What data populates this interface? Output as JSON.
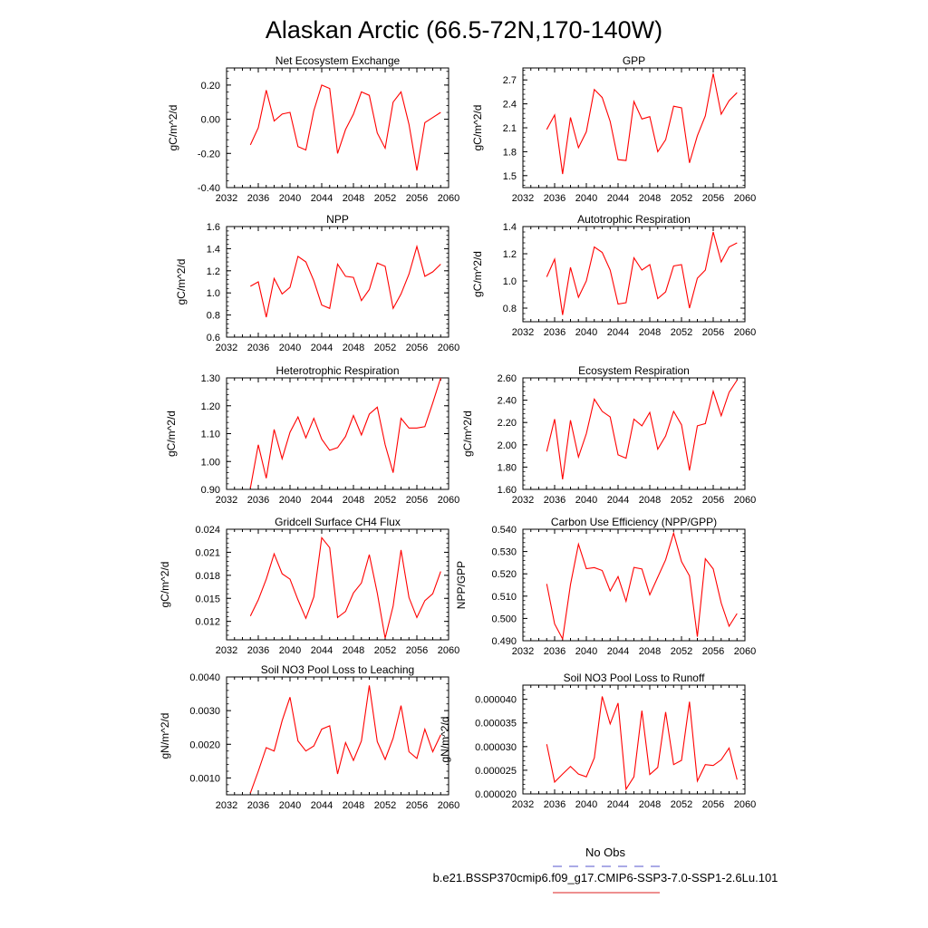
{
  "title": "Alaskan Arctic (66.5-72N,170-140W)",
  "legend": {
    "items": [
      {
        "label": "No Obs",
        "color": "#5555cc",
        "dash": true
      },
      {
        "label": "b.e21.BSSP370cmip6.f09_g17.CMIP6-SSP3-7.0-SSP1-2.6Lu.101",
        "color": "#dd2222",
        "dash": false
      }
    ]
  },
  "colors": {
    "series": "#ff0000",
    "axis": "#000000"
  },
  "chart_data": [
    {
      "type": "line",
      "title": "Net Ecosystem Exchange",
      "ylabel": "gC/m^2/d",
      "xlim": [
        2032,
        2060
      ],
      "xticks": [
        2032,
        2036,
        2040,
        2044,
        2048,
        2052,
        2056,
        2060
      ],
      "ylim": [
        -0.4,
        0.3
      ],
      "yticks": [
        -0.4,
        -0.2,
        0.0,
        0.2
      ],
      "ytick_labels": [
        "-0.40",
        "-0.20",
        "0.00",
        "0.20"
      ],
      "x": [
        2035,
        2036,
        2037,
        2038,
        2039,
        2040,
        2041,
        2042,
        2043,
        2044,
        2045,
        2046,
        2047,
        2048,
        2049,
        2050,
        2051,
        2052,
        2053,
        2054,
        2055,
        2056,
        2057,
        2058,
        2059
      ],
      "y": [
        -0.15,
        -0.05,
        0.17,
        -0.01,
        0.03,
        0.04,
        -0.16,
        -0.18,
        0.05,
        0.2,
        0.18,
        -0.2,
        -0.06,
        0.03,
        0.16,
        0.14,
        -0.08,
        -0.17,
        0.1,
        0.16,
        -0.03,
        -0.3,
        -0.02,
        0.01,
        0.04
      ]
    },
    {
      "type": "line",
      "title": "GPP",
      "ylabel": "gC/m^2/d",
      "xlim": [
        2032,
        2060
      ],
      "xticks": [
        2032,
        2036,
        2040,
        2044,
        2048,
        2052,
        2056,
        2060
      ],
      "ylim": [
        1.35,
        2.85
      ],
      "yticks": [
        1.5,
        1.8,
        2.1,
        2.4,
        2.7
      ],
      "ytick_labels": [
        "1.5",
        "1.8",
        "2.1",
        "2.4",
        "2.7"
      ],
      "x": [
        2035,
        2036,
        2037,
        2038,
        2039,
        2040,
        2041,
        2042,
        2043,
        2044,
        2045,
        2046,
        2047,
        2048,
        2049,
        2050,
        2051,
        2052,
        2053,
        2054,
        2055,
        2056,
        2057,
        2058,
        2059
      ],
      "y": [
        2.08,
        2.26,
        1.52,
        2.23,
        1.85,
        2.05,
        2.58,
        2.48,
        2.18,
        1.7,
        1.69,
        2.43,
        2.21,
        2.24,
        1.8,
        1.95,
        2.37,
        2.35,
        1.66,
        2.0,
        2.25,
        2.78,
        2.27,
        2.44,
        2.54
      ]
    },
    {
      "type": "line",
      "title": "NPP",
      "ylabel": "gC/m^2/d",
      "xlim": [
        2032,
        2060
      ],
      "xticks": [
        2032,
        2036,
        2040,
        2044,
        2048,
        2052,
        2056,
        2060
      ],
      "ylim": [
        0.6,
        1.6
      ],
      "yticks": [
        0.6,
        0.8,
        1.0,
        1.2,
        1.4,
        1.6
      ],
      "ytick_labels": [
        "0.6",
        "0.8",
        "1.0",
        "1.2",
        "1.4",
        "1.6"
      ],
      "x": [
        2035,
        2036,
        2037,
        2038,
        2039,
        2040,
        2041,
        2042,
        2043,
        2044,
        2045,
        2046,
        2047,
        2048,
        2049,
        2050,
        2051,
        2052,
        2053,
        2054,
        2055,
        2056,
        2057,
        2058,
        2059
      ],
      "y": [
        1.06,
        1.1,
        0.78,
        1.13,
        0.99,
        1.05,
        1.33,
        1.28,
        1.11,
        0.89,
        0.86,
        1.26,
        1.15,
        1.14,
        0.93,
        1.03,
        1.27,
        1.24,
        0.86,
        0.99,
        1.17,
        1.42,
        1.15,
        1.19,
        1.26
      ]
    },
    {
      "type": "line",
      "title": "Autotrophic Respiration",
      "ylabel": "gC/m^2/d",
      "xlim": [
        2032,
        2060
      ],
      "xticks": [
        2032,
        2036,
        2040,
        2044,
        2048,
        2052,
        2056,
        2060
      ],
      "ylim": [
        0.7,
        1.4
      ],
      "yticks": [
        0.8,
        1.0,
        1.2,
        1.4
      ],
      "ytick_labels": [
        "0.8",
        "1.0",
        "1.2",
        "1.4"
      ],
      "x": [
        2035,
        2036,
        2037,
        2038,
        2039,
        2040,
        2041,
        2042,
        2043,
        2044,
        2045,
        2046,
        2047,
        2048,
        2049,
        2050,
        2051,
        2052,
        2053,
        2054,
        2055,
        2056,
        2057,
        2058,
        2059
      ],
      "y": [
        1.03,
        1.16,
        0.75,
        1.1,
        0.88,
        1.0,
        1.25,
        1.21,
        1.08,
        0.83,
        0.84,
        1.17,
        1.08,
        1.12,
        0.87,
        0.92,
        1.11,
        1.12,
        0.8,
        1.02,
        1.08,
        1.36,
        1.14,
        1.25,
        1.28
      ]
    },
    {
      "type": "line",
      "title": "Heterotrophic Respiration",
      "ylabel": "gC/m^2/d",
      "xlim": [
        2032,
        2060
      ],
      "xticks": [
        2032,
        2036,
        2040,
        2044,
        2048,
        2052,
        2056,
        2060
      ],
      "ylim": [
        0.9,
        1.3
      ],
      "yticks": [
        0.9,
        1.0,
        1.1,
        1.2,
        1.3
      ],
      "ytick_labels": [
        "0.90",
        "1.00",
        "1.10",
        "1.20",
        "1.30"
      ],
      "x": [
        2035,
        2036,
        2037,
        2038,
        2039,
        2040,
        2041,
        2042,
        2043,
        2044,
        2045,
        2046,
        2047,
        2048,
        2049,
        2050,
        2051,
        2052,
        2053,
        2054,
        2055,
        2056,
        2057,
        2058,
        2059
      ],
      "y": [
        0.905,
        1.06,
        0.94,
        1.115,
        1.01,
        1.105,
        1.16,
        1.085,
        1.155,
        1.08,
        1.04,
        1.05,
        1.09,
        1.165,
        1.095,
        1.17,
        1.195,
        1.06,
        0.96,
        1.155,
        1.12,
        1.12,
        1.125,
        1.21,
        1.3
      ]
    },
    {
      "type": "line",
      "title": "Ecosystem Respiration",
      "ylabel": "gC/m^2/d",
      "xlim": [
        2032,
        2060
      ],
      "xticks": [
        2032,
        2036,
        2040,
        2044,
        2048,
        2052,
        2056,
        2060
      ],
      "ylim": [
        1.6,
        2.6
      ],
      "yticks": [
        1.6,
        1.8,
        2.0,
        2.2,
        2.4,
        2.6
      ],
      "ytick_labels": [
        "1.60",
        "1.80",
        "2.00",
        "2.20",
        "2.40",
        "2.60"
      ],
      "x": [
        2035,
        2036,
        2037,
        2038,
        2039,
        2040,
        2041,
        2042,
        2043,
        2044,
        2045,
        2046,
        2047,
        2048,
        2049,
        2050,
        2051,
        2052,
        2053,
        2054,
        2055,
        2056,
        2057,
        2058,
        2059
      ],
      "y": [
        1.94,
        2.23,
        1.69,
        2.22,
        1.89,
        2.1,
        2.41,
        2.3,
        2.25,
        1.91,
        1.88,
        2.23,
        2.17,
        2.29,
        1.96,
        2.08,
        2.3,
        2.18,
        1.77,
        2.17,
        2.19,
        2.48,
        2.26,
        2.47,
        2.58
      ]
    },
    {
      "type": "line",
      "title": "Gridcell Surface CH4 Flux",
      "ylabel": "gC/m^2/d",
      "xlim": [
        2032,
        2060
      ],
      "xticks": [
        2032,
        2036,
        2040,
        2044,
        2048,
        2052,
        2056,
        2060
      ],
      "ylim": [
        0.0096,
        0.024
      ],
      "yticks": [
        0.012,
        0.015,
        0.018,
        0.021,
        0.024
      ],
      "ytick_labels": [
        "0.012",
        "0.015",
        "0.018",
        "0.021",
        "0.024"
      ],
      "x": [
        2035,
        2036,
        2037,
        2038,
        2039,
        2040,
        2041,
        2042,
        2043,
        2044,
        2045,
        2046,
        2047,
        2048,
        2049,
        2050,
        2051,
        2052,
        2053,
        2054,
        2055,
        2056,
        2057,
        2058,
        2059
      ],
      "y": [
        0.0127,
        0.0148,
        0.0175,
        0.0208,
        0.0182,
        0.0175,
        0.0148,
        0.0124,
        0.0152,
        0.0229,
        0.0216,
        0.0125,
        0.0133,
        0.0157,
        0.017,
        0.0207,
        0.0157,
        0.0098,
        0.014,
        0.0213,
        0.0151,
        0.0125,
        0.0147,
        0.0156,
        0.0185
      ]
    },
    {
      "type": "line",
      "title": "Carbon Use Efficiency (NPP/GPP)",
      "ylabel": "NPP/GPP",
      "xlim": [
        2032,
        2060
      ],
      "xticks": [
        2032,
        2036,
        2040,
        2044,
        2048,
        2052,
        2056,
        2060
      ],
      "ylim": [
        0.49,
        0.54
      ],
      "yticks": [
        0.49,
        0.5,
        0.51,
        0.52,
        0.53,
        0.54
      ],
      "ytick_labels": [
        "0.490",
        "0.500",
        "0.510",
        "0.520",
        "0.530",
        "0.540"
      ],
      "x": [
        2035,
        2036,
        2037,
        2038,
        2039,
        2040,
        2041,
        2042,
        2043,
        2044,
        2045,
        2046,
        2047,
        2048,
        2049,
        2050,
        2051,
        2052,
        2053,
        2054,
        2055,
        2056,
        2057,
        2058,
        2059
      ],
      "y": [
        0.5155,
        0.4975,
        0.4908,
        0.5152,
        0.5333,
        0.5223,
        0.5228,
        0.5215,
        0.5123,
        0.5188,
        0.5077,
        0.5229,
        0.5222,
        0.5106,
        0.5185,
        0.5263,
        0.5383,
        0.5255,
        0.5191,
        0.4918,
        0.5268,
        0.5222,
        0.5069,
        0.4965,
        0.5022
      ]
    },
    {
      "type": "line",
      "title": "Soil NO3 Pool Loss to Leaching",
      "ylabel": "gN/m^2/d",
      "xlim": [
        2032,
        2060
      ],
      "xticks": [
        2032,
        2036,
        2040,
        2044,
        2048,
        2052,
        2056,
        2060
      ],
      "ylim": [
        0.0005,
        0.004
      ],
      "yticks": [
        0.001,
        0.002,
        0.003,
        0.004
      ],
      "ytick_labels": [
        "0.0010",
        "0.0020",
        "0.0030",
        "0.0040"
      ],
      "x": [
        2035,
        2036,
        2037,
        2038,
        2039,
        2040,
        2041,
        2042,
        2043,
        2044,
        2045,
        2046,
        2047,
        2048,
        2049,
        2050,
        2051,
        2052,
        2053,
        2054,
        2055,
        2056,
        2057,
        2058,
        2059
      ],
      "y": [
        0.00055,
        0.0012,
        0.0019,
        0.0018,
        0.0027,
        0.0034,
        0.0021,
        0.0018,
        0.00195,
        0.00245,
        0.00255,
        0.00112,
        0.00205,
        0.00152,
        0.0021,
        0.00375,
        0.00208,
        0.00155,
        0.00218,
        0.00315,
        0.00178,
        0.00158,
        0.00245,
        0.00178,
        0.00228
      ]
    },
    {
      "type": "line",
      "title": "Soil NO3 Pool Loss to Runoff",
      "ylabel": "gN/m^2/d",
      "xlim": [
        2032,
        2060
      ],
      "xticks": [
        2032,
        2036,
        2040,
        2044,
        2048,
        2052,
        2056,
        2060
      ],
      "ylim": [
        2e-05,
        4.3e-05
      ],
      "yticks": [
        2e-05,
        2.5e-05,
        3e-05,
        3.5e-05,
        4e-05
      ],
      "ytick_labels": [
        "0.000020",
        "0.000025",
        "0.000030",
        "0.000035",
        "0.000040"
      ],
      "x": [
        2035,
        2036,
        2037,
        2038,
        2039,
        2040,
        2041,
        2042,
        2043,
        2044,
        2045,
        2046,
        2047,
        2048,
        2049,
        2050,
        2051,
        2052,
        2053,
        2054,
        2055,
        2056,
        2057,
        2058,
        2059
      ],
      "y": [
        3.05e-05,
        2.25e-05,
        2.42e-05,
        2.58e-05,
        2.42e-05,
        2.36e-05,
        2.76e-05,
        4.06e-05,
        3.48e-05,
        3.92e-05,
        2.1e-05,
        2.36e-05,
        3.76e-05,
        2.41e-05,
        2.56e-05,
        3.73e-05,
        2.62e-05,
        2.71e-05,
        3.95e-05,
        2.27e-05,
        2.62e-05,
        2.6e-05,
        2.72e-05,
        2.97e-05,
        2.3e-05
      ]
    }
  ]
}
